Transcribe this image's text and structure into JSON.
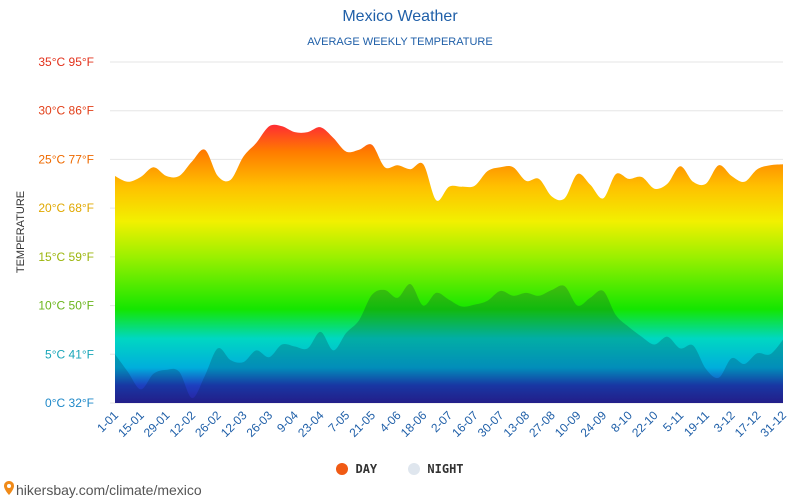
{
  "header": {
    "title": "Mexico Weather",
    "subtitle": "AVERAGE WEEKLY TEMPERATURE"
  },
  "footer": {
    "url": "hikersbay.com/climate/mexico"
  },
  "colors": {
    "day_legend": "#f05a14",
    "night_legend": "#dfe6ee",
    "title": "#1f5fa8"
  },
  "chart_data": {
    "type": "area",
    "title": "Mexico Weather",
    "subtitle": "AVERAGE WEEKLY TEMPERATURE",
    "ylabel": "TEMPERATURE",
    "xlabel": "",
    "ylim": [
      0,
      35
    ],
    "grid": true,
    "legend_position": "bottom-center",
    "y_ticks": [
      {
        "value": 0,
        "label": "0°C 32°F",
        "color": "#1e88c8"
      },
      {
        "value": 5,
        "label": "5°C 41°F",
        "color": "#19a6b8"
      },
      {
        "value": 10,
        "label": "10°C 50°F",
        "color": "#6ab51c"
      },
      {
        "value": 15,
        "label": "15°C 59°F",
        "color": "#9bb50c"
      },
      {
        "value": 20,
        "label": "20°C 68°F",
        "color": "#e0a800"
      },
      {
        "value": 25,
        "label": "25°C 77°F",
        "color": "#ee6a00"
      },
      {
        "value": 30,
        "label": "30°C 86°F",
        "color": "#e2401a"
      },
      {
        "value": 35,
        "label": "35°C 95°F",
        "color": "#e2301a"
      }
    ],
    "x_labels": [
      "1-01",
      "15-01",
      "29-01",
      "12-02",
      "26-02",
      "12-03",
      "26-03",
      "9-04",
      "23-04",
      "7-05",
      "21-05",
      "4-06",
      "18-06",
      "2-07",
      "16-07",
      "30-07",
      "13-08",
      "27-08",
      "10-09",
      "24-09",
      "8-10",
      "22-10",
      "5-11",
      "19-11",
      "3-12",
      "17-12",
      "31-12"
    ],
    "legend": [
      {
        "name": "DAY",
        "color": "#f05a14"
      },
      {
        "name": "NIGHT",
        "color": "#dfe6ee"
      }
    ],
    "series": [
      {
        "name": "DAY",
        "values": [
          23.3,
          22.7,
          23.2,
          24.2,
          23.3,
          23.3,
          24.8,
          26.0,
          23.3,
          22.9,
          25.3,
          26.7,
          28.4,
          28.4,
          27.8,
          27.8,
          28.3,
          27.2,
          25.8,
          26.0,
          26.5,
          24.2,
          24.4,
          24.0,
          24.5,
          20.8,
          22.2,
          22.2,
          22.3,
          23.8,
          24.2,
          24.2,
          22.8,
          23.0,
          21.2,
          21.0,
          23.5,
          22.4,
          21.0,
          23.5,
          23.0,
          23.2,
          22.0,
          22.5,
          24.3,
          22.7,
          22.5,
          24.4,
          23.3,
          22.7,
          24.0,
          24.4,
          24.5
        ]
      },
      {
        "name": "NIGHT",
        "values": [
          5.0,
          3.2,
          1.4,
          3.0,
          3.4,
          3.2,
          0.5,
          2.8,
          5.6,
          4.4,
          4.2,
          5.4,
          4.7,
          6.0,
          5.8,
          5.6,
          7.3,
          5.4,
          7.2,
          8.5,
          11.1,
          11.6,
          10.8,
          12.2,
          10.0,
          11.3,
          10.6,
          9.9,
          10.1,
          10.5,
          11.5,
          11.0,
          11.3,
          11.0,
          11.6,
          12.0,
          10.0,
          10.8,
          11.5,
          9.0,
          7.8,
          6.8,
          6.0,
          6.8,
          5.6,
          5.9,
          3.5,
          2.6,
          4.6,
          4.0,
          5.1,
          5.0,
          6.5
        ]
      }
    ]
  }
}
